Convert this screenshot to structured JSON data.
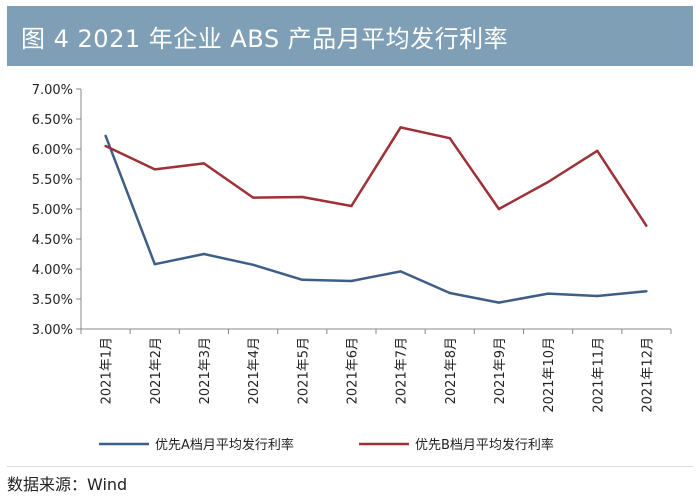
{
  "figure_title": "图 4   2021 年企业 ABS 产品月平均发行利率",
  "source": "数据来源：Wind",
  "colors": {
    "title_bg": "#7f9fb6",
    "series_a": "#3f5e86",
    "series_b": "#9e3137"
  },
  "chart_data": {
    "type": "line",
    "categories": [
      "2021年1月",
      "2021年2月",
      "2021年3月",
      "2021年4月",
      "2021年5月",
      "2021年6月",
      "2021年7月",
      "2021年8月",
      "2021年9月",
      "2021年10月",
      "2021年11月",
      "2021年12月"
    ],
    "series": [
      {
        "name": "优先A档月平均发行利率",
        "values": [
          6.22,
          4.08,
          4.25,
          4.07,
          3.82,
          3.8,
          3.96,
          3.6,
          3.44,
          3.59,
          3.55,
          3.63
        ]
      },
      {
        "name": "优先B档月平均发行利率",
        "values": [
          6.05,
          5.66,
          5.76,
          5.19,
          5.2,
          5.05,
          6.36,
          6.18,
          5.0,
          5.45,
          5.97,
          4.72
        ]
      }
    ],
    "ylim": [
      3.0,
      7.0
    ],
    "yticks": [
      "3.00%",
      "3.50%",
      "4.00%",
      "4.50%",
      "5.00%",
      "5.50%",
      "6.00%",
      "6.50%",
      "7.00%"
    ],
    "legend_position": "bottom"
  }
}
